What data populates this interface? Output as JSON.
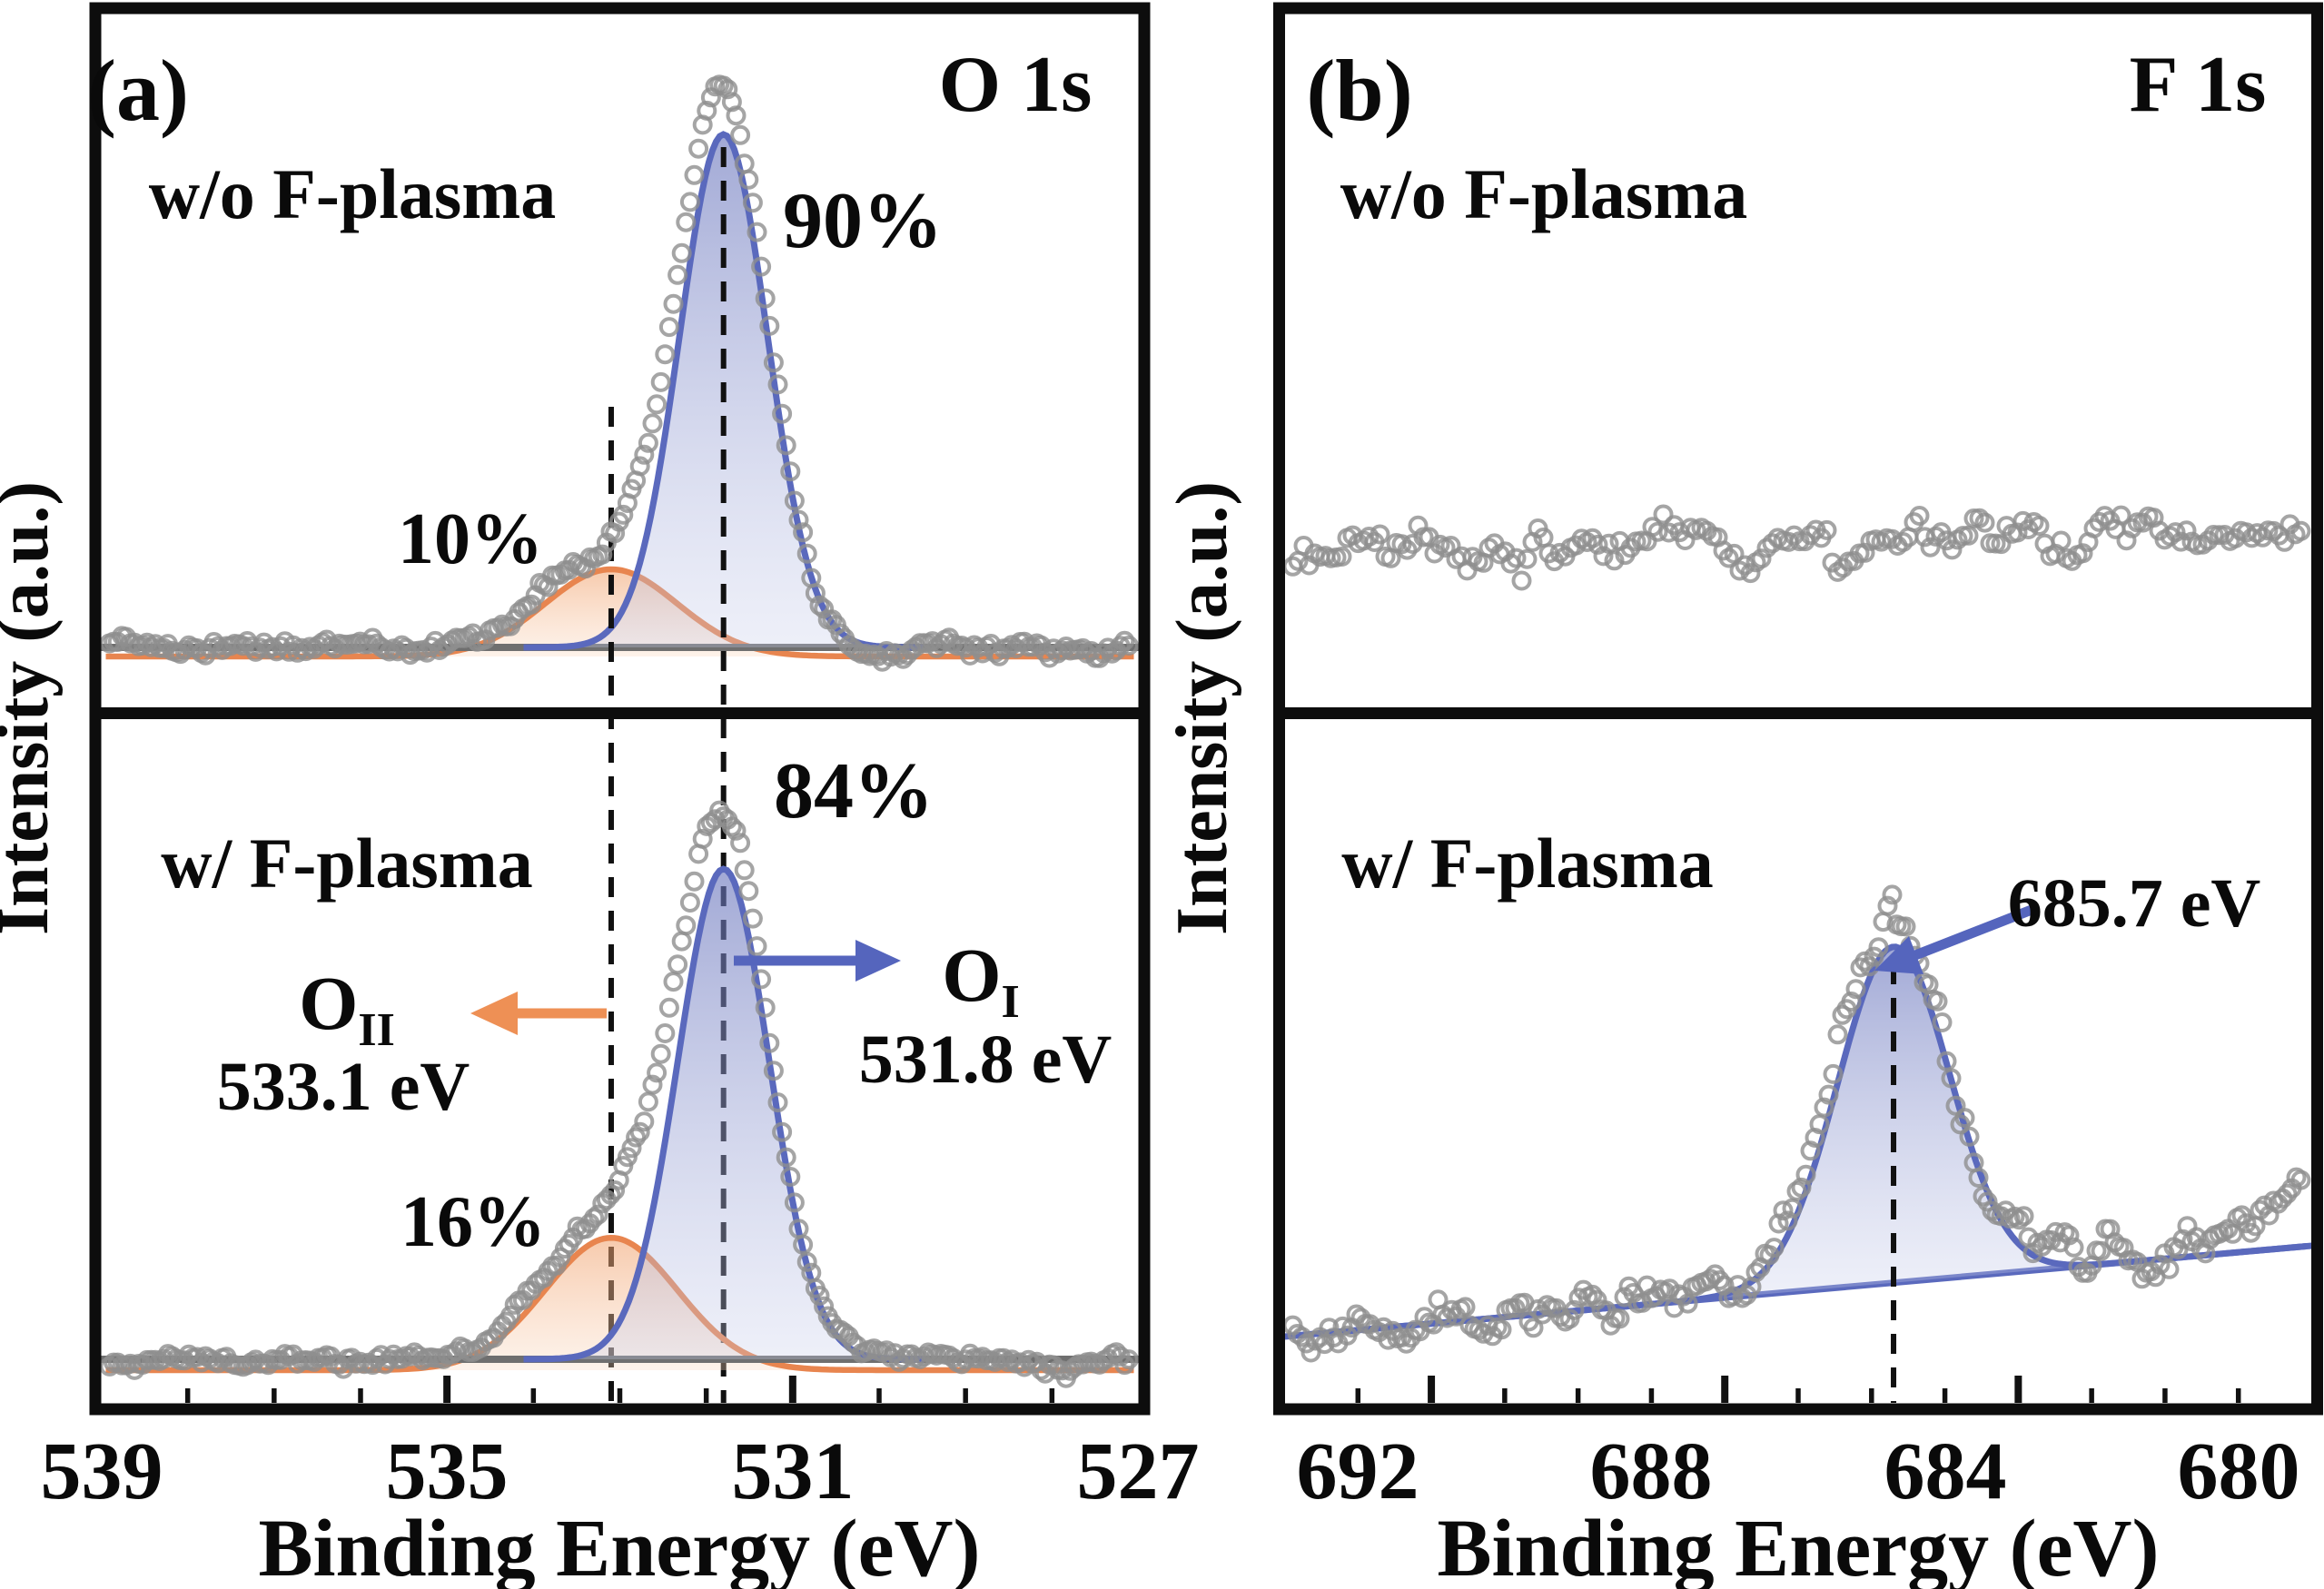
{
  "colors": {
    "blue_accent": "#5565bd",
    "orange_accent": "#ee9055",
    "blue_stroke": "#5a69bd",
    "orange_stroke": "#e8854f",
    "blue_fill_top": "rgba(104,116,188,0.62)",
    "blue_fill_bottom": "rgba(198,204,234,0.30)",
    "orange_fill_top": "rgba(240,158,104,0.55)",
    "orange_fill_bottom": "rgba(250,216,190,0.32)",
    "gray_baseline": "#6f6f6f",
    "circle_stroke": "#8e8e8e",
    "guide_black": "#111111"
  },
  "panel_a": {
    "tag": "(a)",
    "species": "O 1s",
    "xlabel": "Binding Energy (eV)",
    "ylabel": "Intensity (a.u.)",
    "ticks": [
      "539",
      "535",
      "531",
      "527"
    ],
    "top": {
      "condition": "w/o F-plasma",
      "main_share": "90%",
      "secondary_share": "10%"
    },
    "bottom": {
      "condition": "w/ F-plasma",
      "main_share": "84%",
      "secondary_share": "16%"
    },
    "peak1_sym": "O",
    "peak1_sub": "I",
    "peak1_energy": "531.8 eV",
    "peak2_sym": "O",
    "peak2_sub": "II",
    "peak2_energy": "533.1 eV"
  },
  "panel_b": {
    "tag": "(b)",
    "species": "F 1s",
    "xlabel": "Binding Energy (eV)",
    "ylabel": "Intensity (a.u.)",
    "ticks": [
      "692",
      "688",
      "684",
      "680"
    ],
    "top": {
      "condition": "w/o F-plasma"
    },
    "bottom": {
      "condition": "w/ F-plasma",
      "peak_energy": "685.7 eV"
    }
  },
  "chart_data": [
    {
      "id": "a_top",
      "panel": "a",
      "row": "top",
      "type": "area",
      "condition": "w/o F-plasma",
      "x_unit": "eV",
      "x_range": [
        539,
        527
      ],
      "x_tick_major": [
        539,
        535,
        531,
        527
      ],
      "x_tick_minor_step": 1,
      "peaks": [
        {
          "name": "O_I",
          "center_eV": 531.8,
          "fwhm_eV": 1.2,
          "rel_height": 1.0,
          "share_pct": 90,
          "color_key": "blue"
        },
        {
          "name": "O_II",
          "center_eV": 533.1,
          "fwhm_eV": 1.8,
          "rel_height": 0.17,
          "share_pct": 10,
          "color_key": "orange"
        }
      ],
      "dashed_guides_eV": [
        533.1,
        531.8
      ],
      "markers": "open-gray-circles",
      "baseline": "flat"
    },
    {
      "id": "a_bottom",
      "panel": "a",
      "row": "bottom",
      "type": "area",
      "condition": "w/ F-plasma",
      "x_unit": "eV",
      "x_range": [
        539,
        527
      ],
      "peaks": [
        {
          "name": "O_I",
          "center_eV": 531.8,
          "fwhm_eV": 1.25,
          "rel_height": 1.0,
          "share_pct": 84,
          "color_key": "blue"
        },
        {
          "name": "O_II",
          "center_eV": 533.1,
          "fwhm_eV": 1.8,
          "rel_height": 0.27,
          "share_pct": 16,
          "color_key": "orange"
        }
      ],
      "dashed_guides_eV": [
        533.1,
        531.8
      ],
      "markers": "open-gray-circles",
      "baseline": "flat"
    },
    {
      "id": "b_top",
      "panel": "b",
      "row": "top",
      "type": "scatter",
      "condition": "w/o F-plasma",
      "x_unit": "eV",
      "x_range": [
        693,
        679
      ],
      "x_tick_major": [
        692,
        688,
        684,
        680
      ],
      "x_tick_minor_step": 1,
      "peaks": [],
      "markers": "open-gray-circles",
      "baseline": "flat-noise-only"
    },
    {
      "id": "b_bottom",
      "panel": "b",
      "row": "bottom",
      "type": "area",
      "condition": "w/ F-plasma",
      "x_unit": "eV",
      "x_range": [
        693,
        679
      ],
      "peaks": [
        {
          "name": "F 1s",
          "center_eV": 685.7,
          "fwhm_eV": 1.8,
          "rel_height": 1.0,
          "color_key": "blue"
        }
      ],
      "dashed_guides_eV": [
        685.7
      ],
      "markers": "open-gray-circles",
      "baseline": "sloped-rising-toward-low-BE"
    }
  ]
}
